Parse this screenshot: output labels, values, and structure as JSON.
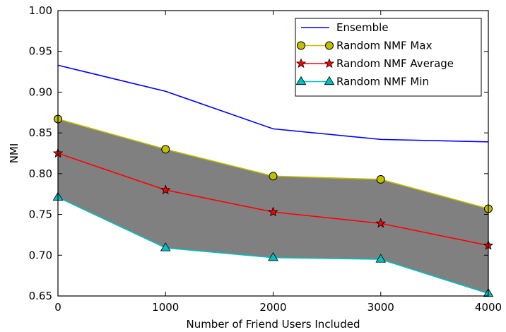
{
  "chart_data": {
    "type": "line",
    "x": [
      0,
      1000,
      2000,
      3000,
      4000
    ],
    "xlabel": "Number of Friend Users Included",
    "ylabel": "NMI",
    "xlim": [
      0,
      4000
    ],
    "ylim": [
      0.65,
      1.0
    ],
    "xticks": [
      "0",
      "1000",
      "2000",
      "3000",
      "4000"
    ],
    "yticks": [
      "0.65",
      "0.70",
      "0.75",
      "0.80",
      "0.85",
      "0.90",
      "0.95",
      "1.00"
    ],
    "grid": false,
    "legend_position": "top-right",
    "fill_between": {
      "upper": "Random NMF Max",
      "lower": "Random NMF Min",
      "color": "#808080"
    },
    "series": [
      {
        "name": "Ensemble",
        "values": [
          0.933,
          0.901,
          0.855,
          0.842,
          0.839
        ],
        "color": "#0000ff",
        "marker": "none"
      },
      {
        "name": "Random NMF Max",
        "values": [
          0.867,
          0.83,
          0.797,
          0.793,
          0.757
        ],
        "color": "#bfbf00",
        "marker": "circle"
      },
      {
        "name": "Random NMF Average",
        "values": [
          0.825,
          0.78,
          0.753,
          0.739,
          0.712
        ],
        "color": "#ff0000",
        "marker": "star"
      },
      {
        "name": "Random NMF Min",
        "values": [
          0.771,
          0.709,
          0.697,
          0.695,
          0.653
        ],
        "color": "#00bfbf",
        "marker": "triangle"
      }
    ]
  }
}
